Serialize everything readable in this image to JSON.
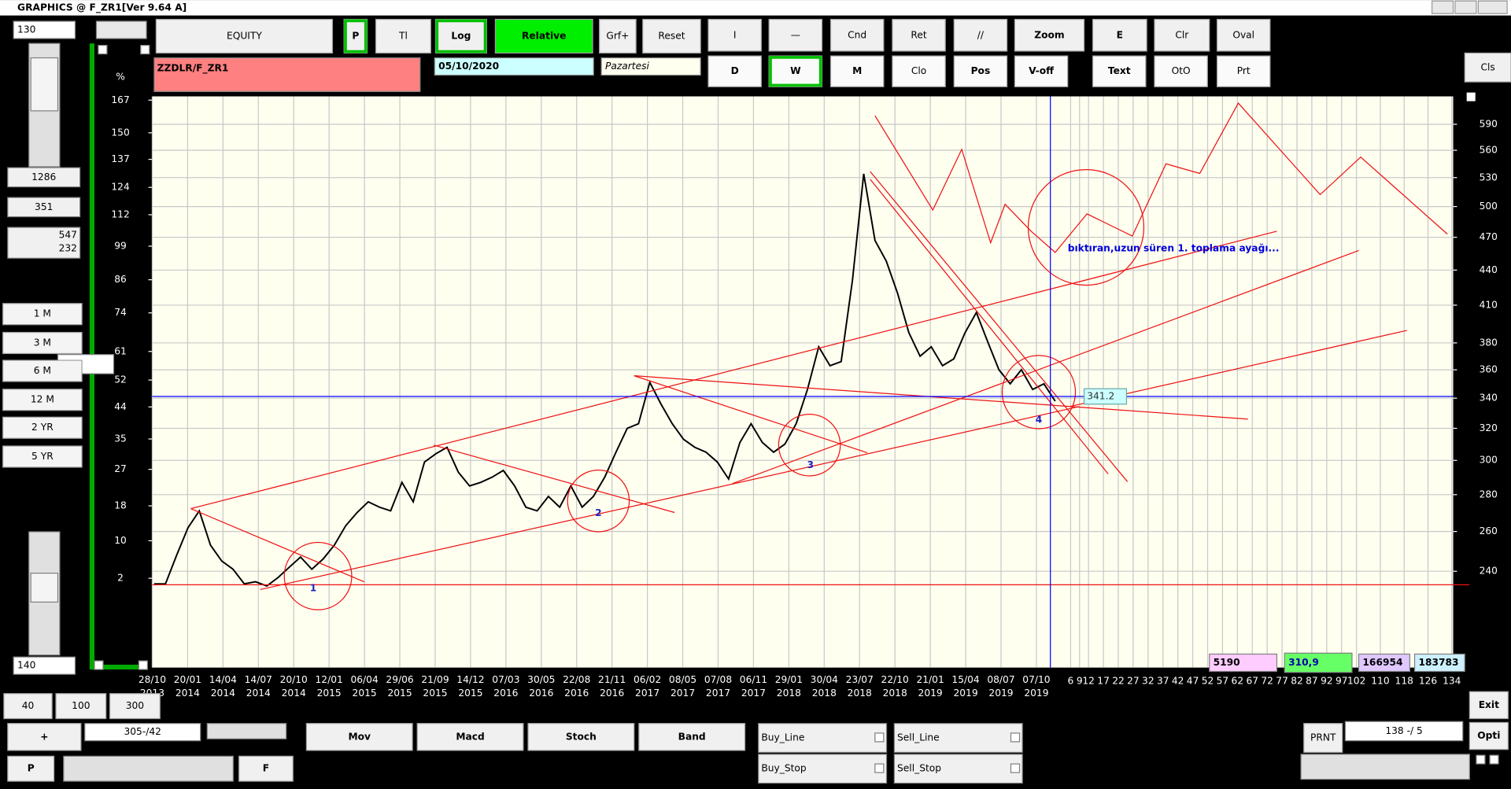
{
  "window": {
    "title": "GRAPHICS  @ F_ZR1[Ver 9.64 A]"
  },
  "left_panel": {
    "top_field": "130",
    "readout_1": 1286,
    "readout_2": 351,
    "readout_3": [
      547,
      232
    ],
    "period_buttons": [
      "1 M",
      "3 M",
      "6 M",
      "12 M",
      "2 YR",
      "5 YR"
    ],
    "percent_field": "% P",
    "bottom_field": "140"
  },
  "toolbar": {
    "row1": [
      "EQUITY",
      "P",
      "Tl",
      "Log",
      "Relative",
      "Grf+",
      "Reset",
      "I",
      "—",
      "Cnd",
      "Ret",
      "//",
      "Zoom",
      "E",
      "Clr",
      "Oval"
    ],
    "row2": [
      "D",
      "W",
      "M",
      "Clo",
      "Pos",
      "V-off",
      "Text",
      "OtO",
      "Prt"
    ],
    "close": "Cls"
  },
  "header": {
    "symbol": "ZZDLR/F_ZR1",
    "date": "05/10/2020",
    "weekday": "Pazartesi"
  },
  "chart": {
    "type": "line",
    "log_scale": true,
    "grid": true,
    "color": "#000000",
    "percent_axis_label": "%",
    "percent_ticks": [
      167,
      150,
      137,
      124,
      112,
      99,
      86,
      74,
      61,
      52,
      44,
      35,
      27,
      18,
      10,
      2
    ],
    "price_ticks": [
      590,
      560,
      530,
      500,
      470,
      440,
      410,
      380,
      360,
      340,
      320,
      300,
      280,
      260,
      240
    ],
    "date_ticks": [
      [
        "28/10",
        "2013"
      ],
      [
        "20/01",
        "2014"
      ],
      [
        "14/04",
        "2014"
      ],
      [
        "14/07",
        "2014"
      ],
      [
        "20/10",
        "2014"
      ],
      [
        "12/01",
        "2015"
      ],
      [
        "06/04",
        "2015"
      ],
      [
        "29/06",
        "2015"
      ],
      [
        "21/09",
        "2015"
      ],
      [
        "14/12",
        "2015"
      ],
      [
        "07/03",
        "2016"
      ],
      [
        "30/05",
        "2016"
      ],
      [
        "22/08",
        "2016"
      ],
      [
        "21/11",
        "2016"
      ],
      [
        "06/02",
        "2017"
      ],
      [
        "08/05",
        "2017"
      ],
      [
        "07/08",
        "2017"
      ],
      [
        "06/11",
        "2017"
      ],
      [
        "29/01",
        "2018"
      ],
      [
        "30/04",
        "2018"
      ],
      [
        "23/07",
        "2018"
      ],
      [
        "22/10",
        "2018"
      ],
      [
        "21/01",
        "2019"
      ],
      [
        "15/04",
        "2019"
      ],
      [
        "08/07",
        "2019"
      ],
      [
        "07/10",
        "2019"
      ]
    ],
    "future_ticks": [
      6,
      9,
      12,
      17,
      22,
      27,
      32,
      37,
      42,
      47,
      52,
      57,
      62,
      67,
      72,
      77,
      82,
      87,
      92,
      97,
      102,
      110,
      118,
      126,
      134
    ],
    "closes": [
      234,
      234,
      248,
      262,
      271,
      253,
      245,
      241,
      234,
      235,
      233,
      237,
      242,
      247,
      241,
      246,
      253,
      263,
      270,
      276,
      273,
      271,
      287,
      276,
      299,
      304,
      308,
      293,
      285,
      287,
      290,
      294,
      285,
      273,
      271,
      279,
      273,
      285,
      273,
      279,
      290,
      305,
      320,
      323,
      351,
      336,
      323,
      313,
      308,
      305,
      299,
      289,
      311,
      323,
      311,
      305,
      310,
      323,
      346,
      377,
      363,
      366,
      431,
      534,
      467,
      448,
      420,
      388,
      370,
      377,
      363,
      368,
      388,
      404,
      381,
      360,
      350,
      360,
      346,
      350,
      338
    ],
    "last_price": 341.2,
    "annotation": "bıktıran,uzun süren 1. toplama ayağı...",
    "wave_labels": [
      "1",
      "2",
      "3",
      "4"
    ]
  },
  "stats": [
    "5190",
    "310,9",
    "166954",
    "183783"
  ],
  "bottom": {
    "range_buttons": [
      "40",
      "100",
      "300"
    ],
    "plus": "+",
    "counter": "305-/42",
    "p": "P",
    "f": "F",
    "indicators": [
      "Mov",
      "Macd",
      "Stoch",
      "Band"
    ],
    "checks": [
      "Buy_Line",
      "Sell_Line",
      "Buy_Stop",
      "Sell_Stop"
    ],
    "prnt": "PRNT",
    "page": "138 -/ 5",
    "exit": "Exit",
    "opti": "Opti"
  }
}
